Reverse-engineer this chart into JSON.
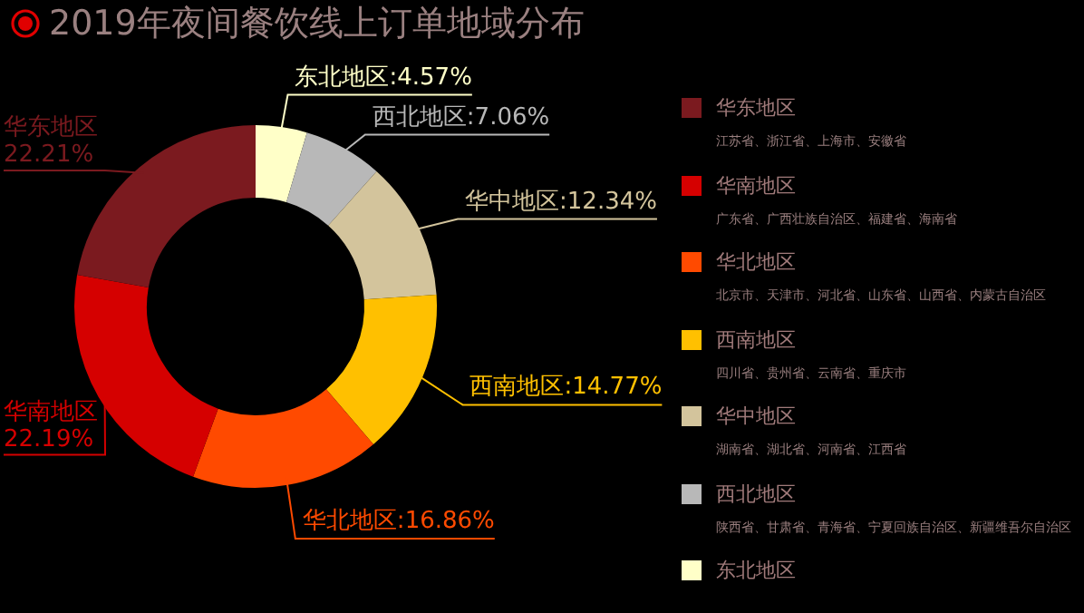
{
  "chart_data": {
    "type": "donut",
    "title": "2019年夜间餐饮线上订单地域分布",
    "categories": [
      "东北地区",
      "西北地区",
      "华中地区",
      "西南地区",
      "华北地区",
      "华南地区",
      "华东地区"
    ],
    "values": [
      4.57,
      7.06,
      12.34,
      14.77,
      16.86,
      22.19,
      22.21
    ],
    "value_labels": [
      "东北地区:4.57%",
      "西北地区:7.06%",
      "华中地区:12.34%",
      "西南地区:14.77%",
      "华北地区:16.86%",
      "22.19%",
      "22.21%"
    ],
    "colors": [
      "#ffffc8",
      "#b8b8b8",
      "#d3c49c",
      "#ffc000",
      "#ff4a00",
      "#d50000",
      "#7b1a1f"
    ],
    "annotations": [
      "江苏省、浙江省、上海市、安徽省",
      "广东省、广西壮族自治区、福建省、海南省",
      "北京市、天津市、河北省、山东省、山西省、内蒙古自治区",
      "四川省、贵州省、云南省、重庆市",
      "湖南省、湖北省、河南省、江西省",
      "陕西省、甘肃省、青海省、宁夏回族自治区、新疆维吾尔自治区"
    ],
    "legend": "right"
  }
}
